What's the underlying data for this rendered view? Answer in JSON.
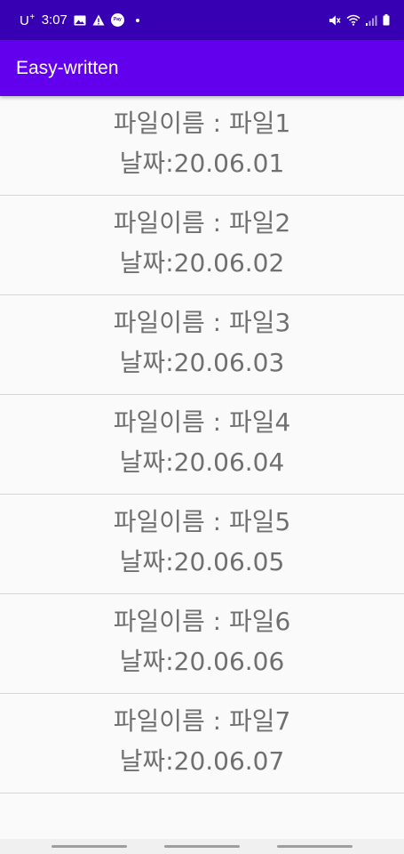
{
  "status_bar": {
    "carrier": "U",
    "carrier_sup": "+",
    "time": "3:07",
    "left_icons": [
      "image-icon",
      "warning-icon",
      "pay-icon",
      "dot-icon"
    ],
    "right_icons": [
      "mute-icon",
      "wifi-icon",
      "signal-icon",
      "battery-icon"
    ],
    "pay_label": "Pay",
    "background": "#3700b3"
  },
  "app_bar": {
    "title": "Easy-written",
    "background": "#6200ee"
  },
  "file_list": {
    "items": [
      {
        "name": "파일이름 : 파일1",
        "date": "날짜:20.06.01"
      },
      {
        "name": "파일이름 : 파일2",
        "date": "날짜:20.06.02"
      },
      {
        "name": "파일이름 : 파일3",
        "date": "날짜:20.06.03"
      },
      {
        "name": "파일이름 : 파일4",
        "date": "날짜:20.06.04"
      },
      {
        "name": "파일이름 : 파일5",
        "date": "날짜:20.06.05"
      },
      {
        "name": "파일이름 : 파일6",
        "date": "날짜:20.06.06"
      },
      {
        "name": "파일이름 : 파일7",
        "date": "날짜:20.06.07"
      }
    ]
  },
  "nav_bar": {
    "handles": [
      "recents",
      "home",
      "back"
    ]
  }
}
